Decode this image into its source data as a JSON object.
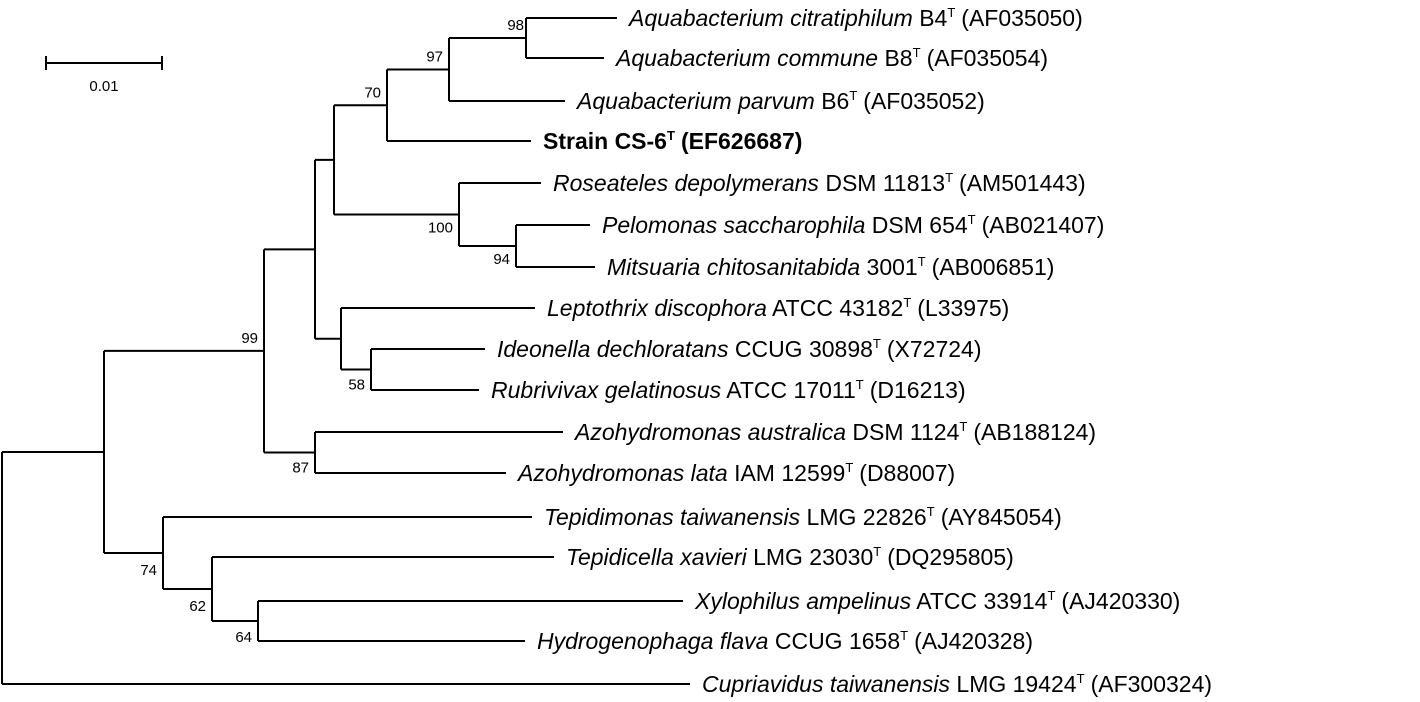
{
  "tree": {
    "scale_bar": {
      "label": "0.01"
    },
    "taxa": [
      {
        "id": "t1",
        "species": "Aquabacterium citratiphilum",
        "strain": "B4",
        "type_mark": "T",
        "accession": "(AF035050)",
        "bold": false
      },
      {
        "id": "t2",
        "species": "Aquabacterium commune",
        "strain": "B8",
        "type_mark": "T",
        "accession": "(AF035054)",
        "bold": false
      },
      {
        "id": "t3",
        "species": "Aquabacterium parvum",
        "strain": "B6",
        "type_mark": "T",
        "accession": "(AF035052)",
        "bold": false
      },
      {
        "id": "t4",
        "species": "",
        "strain": "Strain CS-6",
        "type_mark": "T",
        "accession": "(EF626687)",
        "bold": true
      },
      {
        "id": "t5",
        "species": "Roseateles depolymerans",
        "strain": "DSM 11813",
        "type_mark": "T",
        "accession": "(AM501443)",
        "bold": false
      },
      {
        "id": "t6",
        "species": "Pelomonas saccharophila",
        "strain": "DSM 654",
        "type_mark": "T",
        "accession": "(AB021407)",
        "bold": false
      },
      {
        "id": "t7",
        "species": "Mitsuaria chitosanitabida",
        "strain": "3001",
        "type_mark": "T",
        "accession": "(AB006851)",
        "bold": false
      },
      {
        "id": "t8",
        "species": "Leptothrix discophora",
        "strain": "ATCC 43182",
        "type_mark": "T",
        "accession": "(L33975)",
        "bold": false
      },
      {
        "id": "t9",
        "species": "Ideonella dechloratans",
        "strain": "CCUG 30898",
        "type_mark": "T",
        "accession": "(X72724)",
        "bold": false
      },
      {
        "id": "t10",
        "species": "Rubrivivax gelatinosus",
        "strain": "ATCC 17011",
        "type_mark": "T",
        "accession": "(D16213)",
        "bold": false
      },
      {
        "id": "t11",
        "species": "Azohydromonas australica",
        "strain": "DSM 1124",
        "type_mark": "T",
        "accession": "(AB188124)",
        "bold": false
      },
      {
        "id": "t12",
        "species": "Azohydromonas lata",
        "strain": "IAM 12599",
        "type_mark": "T",
        "accession": "(D88007)",
        "bold": false
      },
      {
        "id": "t13",
        "species": "Tepidimonas taiwanensis",
        "strain": "LMG 22826",
        "type_mark": "T",
        "accession": "(AY845054)",
        "bold": false
      },
      {
        "id": "t14",
        "species": "Tepidicella xavieri",
        "strain": "LMG 23030",
        "type_mark": "T",
        "accession": "(DQ295805)",
        "bold": false
      },
      {
        "id": "t15",
        "species": "Xylophilus ampelinus",
        "strain": "ATCC 33914",
        "type_mark": "T",
        "accession": "(AJ420330)",
        "bold": false
      },
      {
        "id": "t16",
        "species": "Hydrogenophaga flava",
        "strain": "CCUG 1658",
        "type_mark": "T",
        "accession": "(AJ420328)",
        "bold": false
      },
      {
        "id": "t17",
        "species": "Cupriavidus taiwanensis",
        "strain": "LMG 19424",
        "type_mark": "T",
        "accession": "(AF300324)",
        "bold": false
      }
    ],
    "bootstrap": [
      {
        "node": "n98",
        "value": "98"
      },
      {
        "node": "n97",
        "value": "97"
      },
      {
        "node": "n70",
        "value": "70"
      },
      {
        "node": "n100",
        "value": "100"
      },
      {
        "node": "n94",
        "value": "94"
      },
      {
        "node": "n58",
        "value": "58"
      },
      {
        "node": "n87",
        "value": "87"
      },
      {
        "node": "n99",
        "value": "99"
      },
      {
        "node": "n74",
        "value": "74"
      },
      {
        "node": "n62",
        "value": "62"
      },
      {
        "node": "n64",
        "value": "64"
      }
    ]
  }
}
